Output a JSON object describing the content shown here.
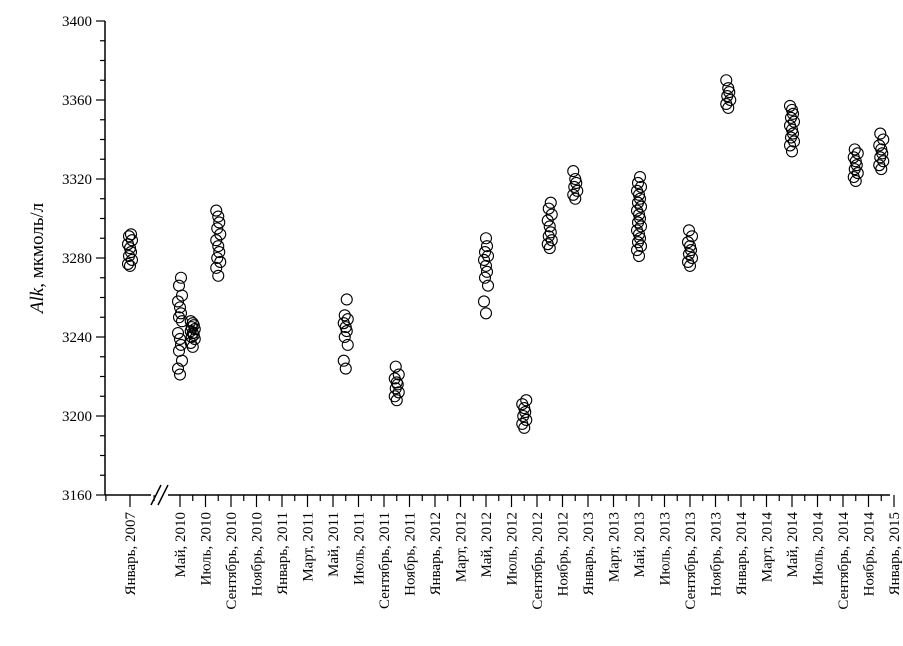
{
  "chart_data": {
    "type": "scatter",
    "title": "",
    "ylabel": {
      "symbol": "Alk",
      "unit": ", мкмоль/л"
    },
    "ylim": [
      3160,
      3400
    ],
    "yticks": [
      "3160",
      "3200",
      "3240",
      "3280",
      "3320",
      "3360",
      "3400"
    ],
    "x_axis_break": true,
    "grid": false,
    "xticks": [
      "Январь, 2007",
      "Май, 2010",
      "Июль, 2010",
      "Сентябрь, 2010",
      "Ноябрь, 2010",
      "Январь, 2011",
      "Март, 2011",
      "Май, 2011",
      "Июль, 2011",
      "Сентябрь, 2011",
      "Ноябрь, 2011",
      "Январь, 2012",
      "Март, 2012",
      "Май, 2012",
      "Июль, 2012",
      "Сентябрь, 2012",
      "Ноябрь, 2012",
      "Январь, 2013",
      "Март, 2013",
      "Май, 2013",
      "Июль, 2013",
      "Сентябрь, 2013",
      "Ноябрь, 2013",
      "Январь, 2014",
      "Март, 2014",
      "Май, 2014",
      "Июль, 2014",
      "Сентябрь, 2014",
      "Ноябрь, 2014",
      "Январь, 2015"
    ],
    "clusters": [
      {
        "date": "январь 2007",
        "values": [
          3276,
          3277,
          3279,
          3281,
          3283,
          3285,
          3287,
          3289,
          3291,
          3292
        ]
      },
      {
        "date": "май 2010",
        "values": [
          3221,
          3224,
          3228,
          3233,
          3236,
          3239,
          3242,
          3248,
          3250,
          3252,
          3255,
          3258,
          3261,
          3266,
          3270
        ]
      },
      {
        "date": "июнь 2010",
        "values": [
          3235,
          3237,
          3239,
          3240,
          3241,
          3242,
          3243,
          3244,
          3245,
          3246,
          3247,
          3248
        ]
      },
      {
        "date": "август 2010",
        "values": [
          3271,
          3275,
          3278,
          3280,
          3283,
          3286,
          3289,
          3292,
          3295,
          3298,
          3301,
          3304
        ]
      },
      {
        "date": "июнь 2011",
        "values": [
          3224,
          3228,
          3236,
          3240,
          3243,
          3245,
          3247,
          3249,
          3251,
          3259
        ]
      },
      {
        "date": "октябрь 2011",
        "values": [
          3208,
          3210,
          3212,
          3214,
          3216,
          3217,
          3219,
          3221,
          3225
        ]
      },
      {
        "date": "май 2012",
        "values": [
          3252,
          3258,
          3266,
          3270,
          3273,
          3276,
          3279,
          3281,
          3283,
          3286,
          3290
        ]
      },
      {
        "date": "август 2012",
        "values": [
          3194,
          3196,
          3198,
          3200,
          3202,
          3204,
          3206,
          3208
        ]
      },
      {
        "date": "октябрь 2012",
        "values": [
          3285,
          3287,
          3289,
          3291,
          3293,
          3296,
          3299,
          3302,
          3305,
          3308
        ]
      },
      {
        "date": "декабрь 2012",
        "values": [
          3310,
          3312,
          3314,
          3316,
          3318,
          3320,
          3324
        ]
      },
      {
        "date": "май 2013",
        "values": [
          3281,
          3284,
          3286,
          3288,
          3290,
          3292,
          3294,
          3296,
          3298,
          3300,
          3302,
          3304,
          3306,
          3308,
          3310,
          3312,
          3314,
          3316,
          3318,
          3321
        ]
      },
      {
        "date": "сентябрь 2013",
        "values": [
          3276,
          3278,
          3280,
          3282,
          3284,
          3286,
          3288,
          3291,
          3294
        ]
      },
      {
        "date": "декабрь 2013",
        "values": [
          3356,
          3358,
          3360,
          3362,
          3364,
          3366,
          3370
        ]
      },
      {
        "date": "май 2014",
        "values": [
          3334,
          3337,
          3339,
          3341,
          3343,
          3345,
          3347,
          3349,
          3351,
          3353,
          3355,
          3357
        ]
      },
      {
        "date": "октябрь 2014",
        "values": [
          3319,
          3321,
          3323,
          3325,
          3327,
          3329,
          3331,
          3333,
          3335
        ]
      },
      {
        "date": "декабрь 2014",
        "values": [
          3325,
          3327,
          3329,
          3331,
          3333,
          3335,
          3337,
          3340,
          3343
        ]
      }
    ]
  }
}
